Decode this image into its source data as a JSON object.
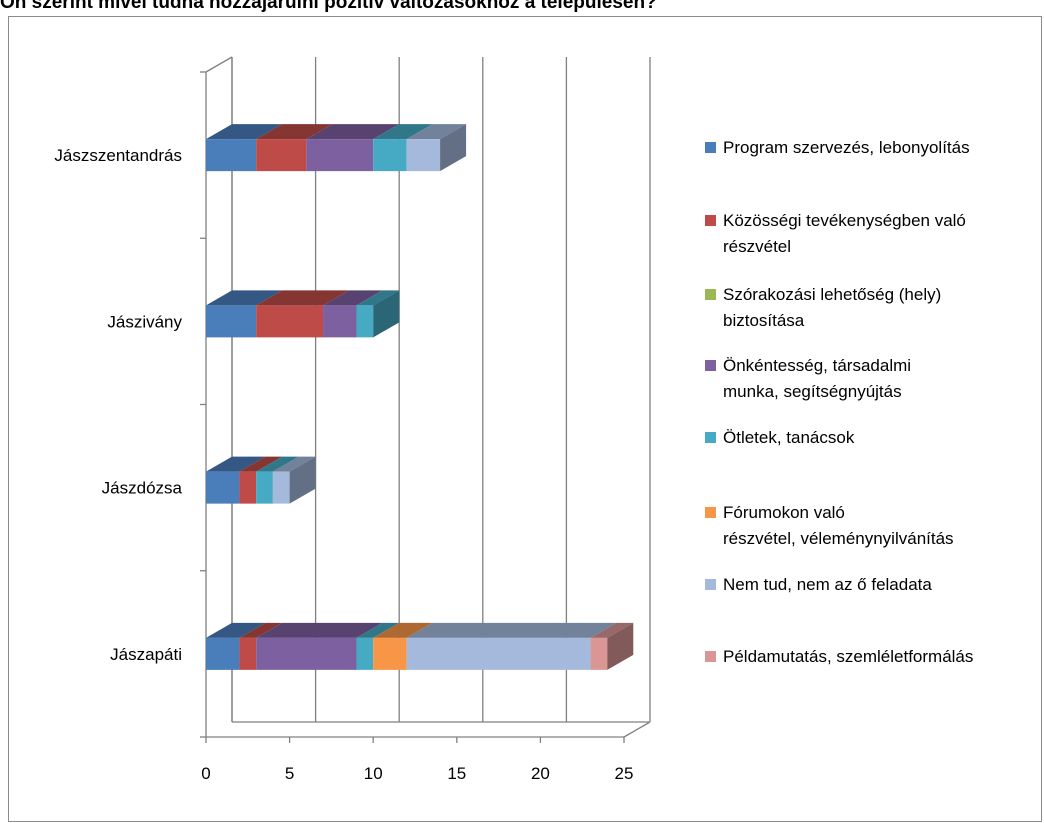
{
  "chart_data": {
    "type": "bar",
    "orientation": "horizontal",
    "stacked": true,
    "three_d": true,
    "title": "Ön szerint mivel tudna hozzájárulni pozitív változásokhoz a településen?",
    "categories": [
      "Jászapáti",
      "Jászdózsa",
      "Jászivány",
      "Jászszentandrás"
    ],
    "xlim": [
      0,
      25
    ],
    "xticks": [
      0,
      5,
      10,
      15,
      20,
      25
    ],
    "grid": "vertical",
    "legend_position": "right",
    "series": [
      {
        "name": "Program szervezés,  lebonyolítás",
        "color": "#4a7ebb",
        "values": [
          2,
          2,
          3,
          3
        ]
      },
      {
        "name": "Közösségi tevékenységben való részvétel",
        "color": "#be4b48",
        "values": [
          1,
          1,
          4,
          3
        ]
      },
      {
        "name": "Szórakozási lehetőség (hely) biztosítása",
        "color": "#98b954",
        "values": [
          0,
          0,
          0,
          0
        ]
      },
      {
        "name": "Önkéntesség, társadalmi munka, segítségnyújtás",
        "color": "#7d60a0",
        "values": [
          6,
          0,
          2,
          4
        ]
      },
      {
        "name": "Ötletek, tanácsok",
        "color": "#46aac5",
        "values": [
          1,
          1,
          1,
          2
        ]
      },
      {
        "name": "Fórumokon való részvétel, véleménynyilvánítás",
        "color": "#f79646",
        "values": [
          2,
          0,
          0,
          0
        ]
      },
      {
        "name": "Nem tud, nem az ő feladata",
        "color": "#a5b9dd",
        "values": [
          11,
          1,
          0,
          2
        ]
      },
      {
        "name": "Példamutatás, szemléletformálás",
        "color": "#d99694",
        "values": [
          1,
          0,
          0,
          0
        ]
      }
    ]
  },
  "legend_lines": [
    [
      "Program szervezés,  lebonyolítás"
    ],
    [
      "Közösségi tevékenységben való",
      "részvétel"
    ],
    [
      "Szórakozási lehetőség (hely)",
      "biztosítása"
    ],
    [
      "Önkéntesség, társadalmi",
      "munka, segítségnyújtás"
    ],
    [
      "Ötletek, tanácsok"
    ],
    [
      "Fórumokon való",
      "részvétel, véleménynyilvánítás"
    ],
    [
      "Nem tud, nem az ő feladata"
    ],
    [
      "Példamutatás, szemléletformálás"
    ]
  ]
}
